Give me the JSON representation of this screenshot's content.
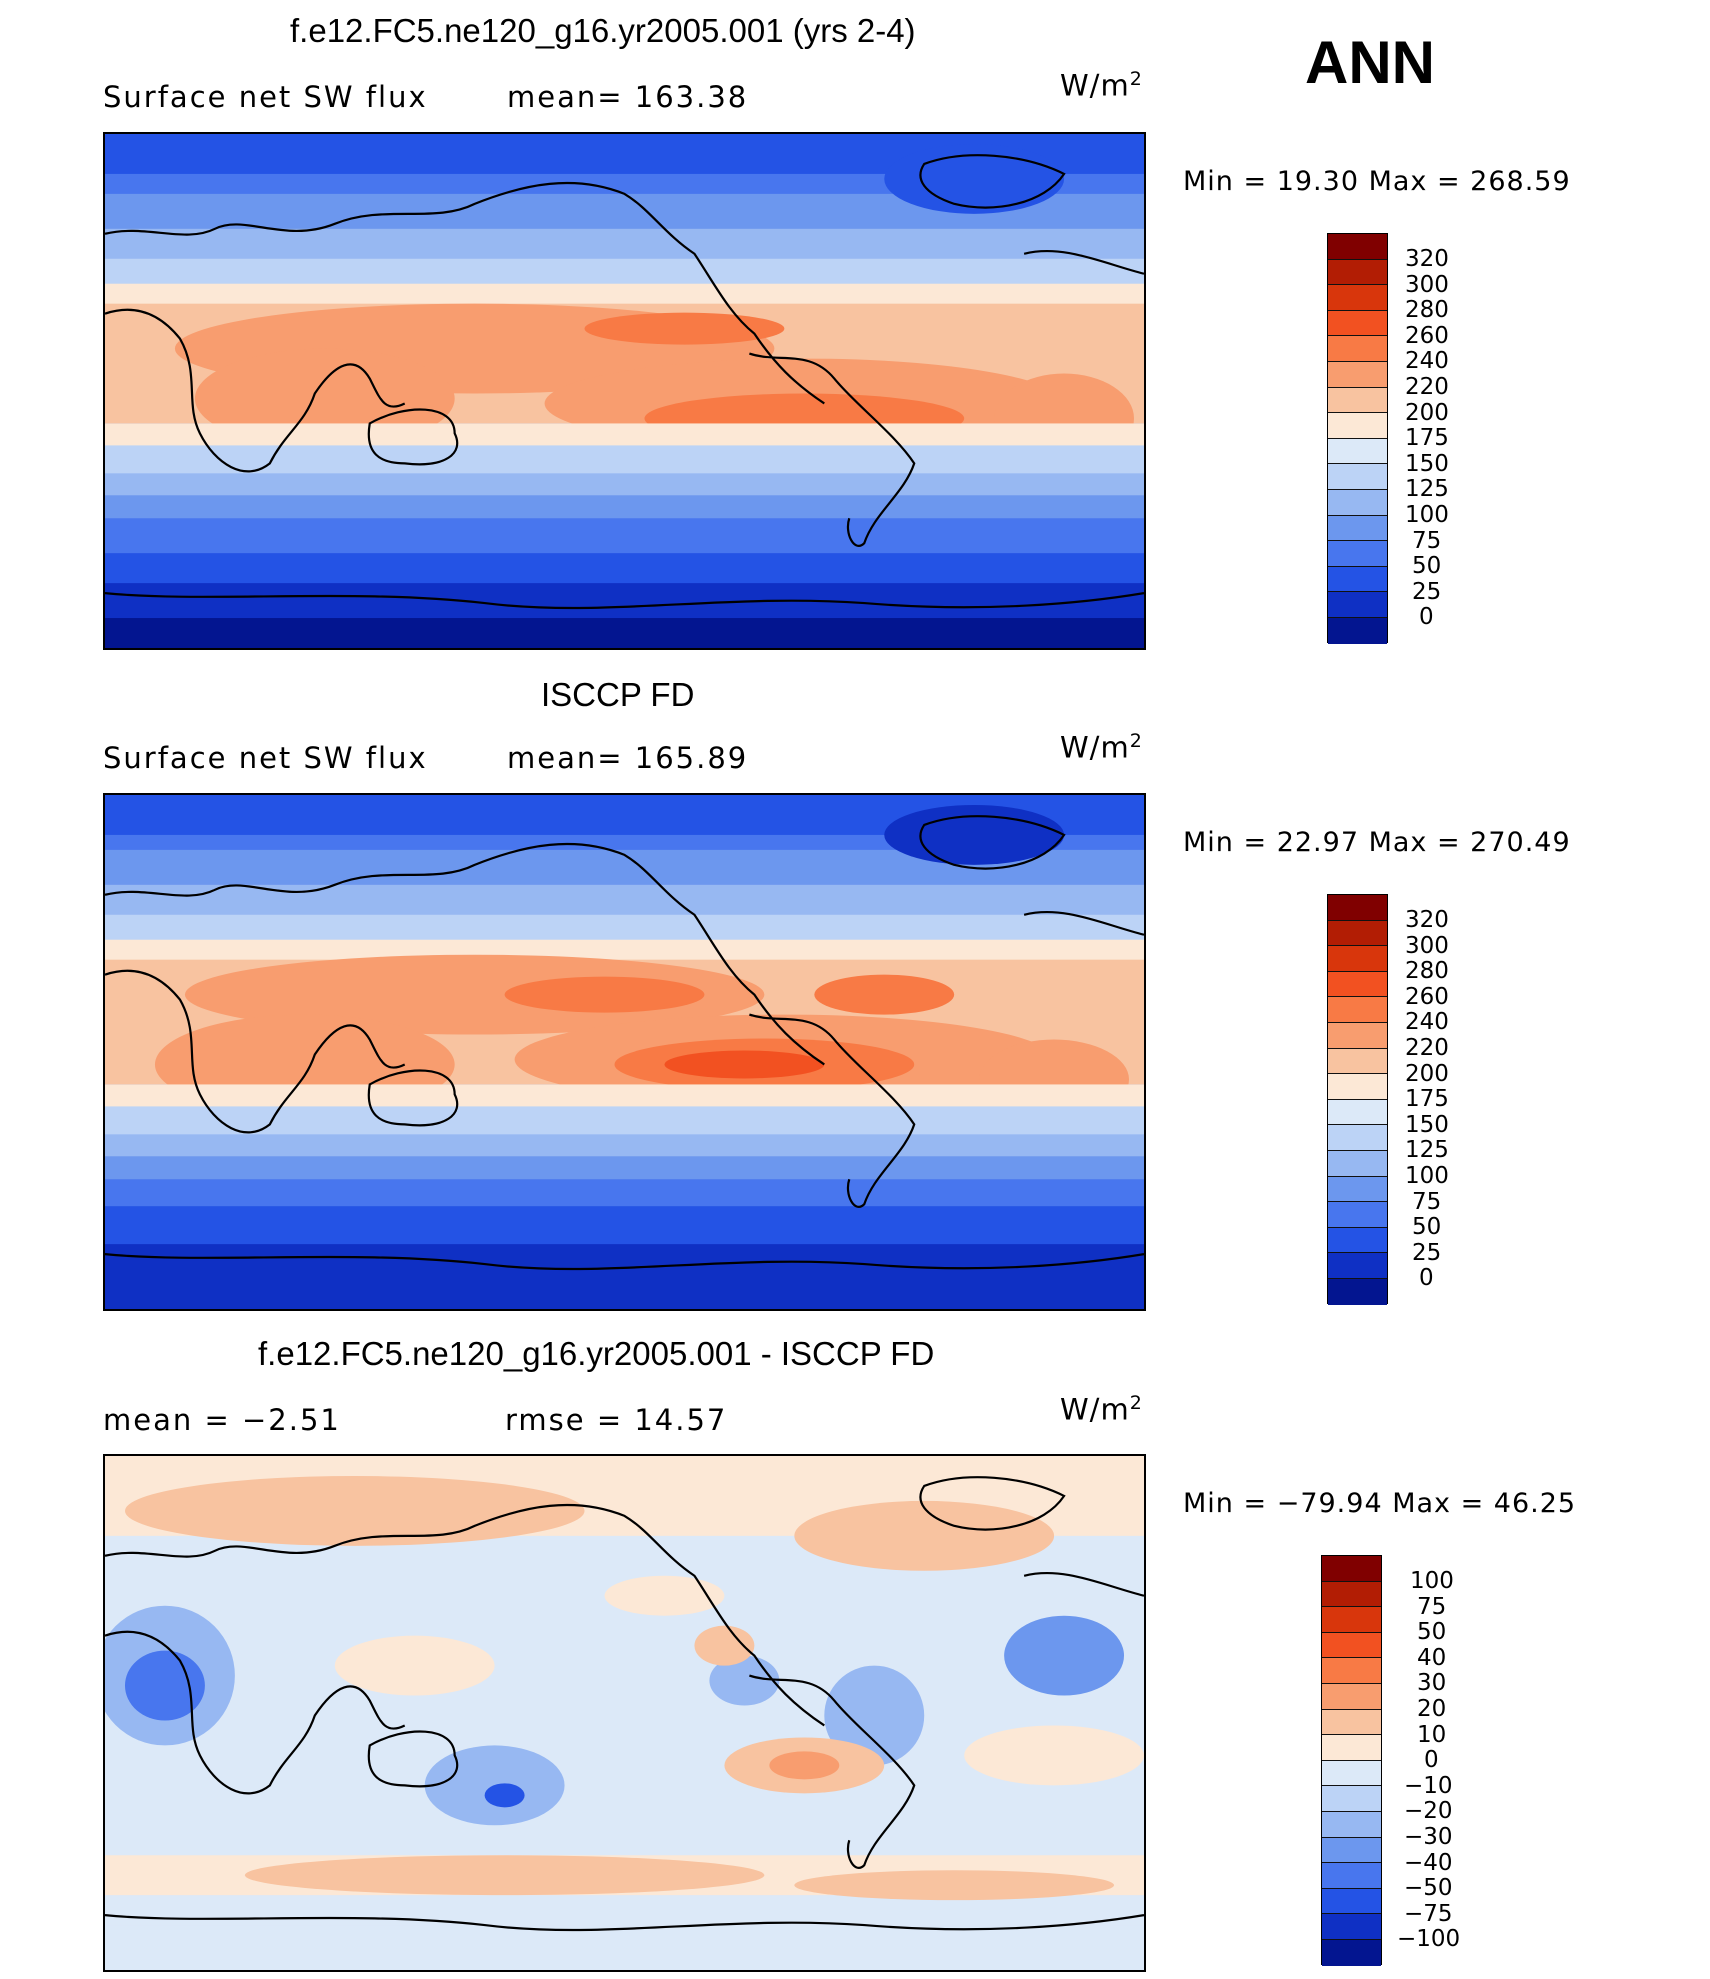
{
  "header": {
    "season": "ANN"
  },
  "panels": [
    {
      "title": "f.e12.FC5.ne120_g16.yr2005.001 (yrs 2-4)",
      "left_label": "Surface net SW flux",
      "mid_label": "mean=  163.38",
      "units": "W/m",
      "units_exp": "2",
      "minmax": "Min =   19.30  Max  =  268.59",
      "colorbar_labels": [
        "320",
        "300",
        "280",
        "260",
        "240",
        "220",
        "200",
        "175",
        "150",
        "125",
        "100",
        "75",
        "50",
        "25",
        "0"
      ],
      "colorbar_colors": [
        "#800000",
        "#b21d04",
        "#d8360c",
        "#f25121",
        "#f87a45",
        "#f89d6f",
        "#f8c3a0",
        "#fce8d6",
        "#dce9f8",
        "#bcd3f6",
        "#97b8f2",
        "#6c97ee",
        "#4876ee",
        "#2453e5",
        "#0f30c4",
        "#031590"
      ]
    },
    {
      "title": "ISCCP FD",
      "left_label": "Surface net SW flux",
      "mid_label": "mean=  165.89",
      "units": "W/m",
      "units_exp": "2",
      "minmax": "Min =   22.97  Max  =  270.49",
      "colorbar_labels": [
        "320",
        "300",
        "280",
        "260",
        "240",
        "220",
        "200",
        "175",
        "150",
        "125",
        "100",
        "75",
        "50",
        "25",
        "0"
      ],
      "colorbar_colors": [
        "#800000",
        "#b21d04",
        "#d8360c",
        "#f25121",
        "#f87a45",
        "#f89d6f",
        "#f8c3a0",
        "#fce8d6",
        "#dce9f8",
        "#bcd3f6",
        "#97b8f2",
        "#6c97ee",
        "#4876ee",
        "#2453e5",
        "#0f30c4",
        "#031590"
      ]
    },
    {
      "title": "f.e12.FC5.ne120_g16.yr2005.001 - ISCCP FD",
      "left_label": "mean =    −2.51",
      "mid_label": "rmse =    14.57",
      "units": "W/m",
      "units_exp": "2",
      "minmax": "Min = −79.94  Max  =   46.25",
      "colorbar_labels": [
        "100",
        "75",
        "50",
        "40",
        "30",
        "20",
        "10",
        "0",
        "−10",
        "−20",
        "−30",
        "−40",
        "−50",
        "−75",
        "−100"
      ],
      "colorbar_colors": [
        "#800000",
        "#b21d04",
        "#d8360c",
        "#f25121",
        "#f87a45",
        "#f89d6f",
        "#f8c3a0",
        "#fce8d6",
        "#dce9f8",
        "#bcd3f6",
        "#97b8f2",
        "#6c97ee",
        "#4876ee",
        "#2453e5",
        "#0f30c4",
        "#031590"
      ]
    }
  ]
}
